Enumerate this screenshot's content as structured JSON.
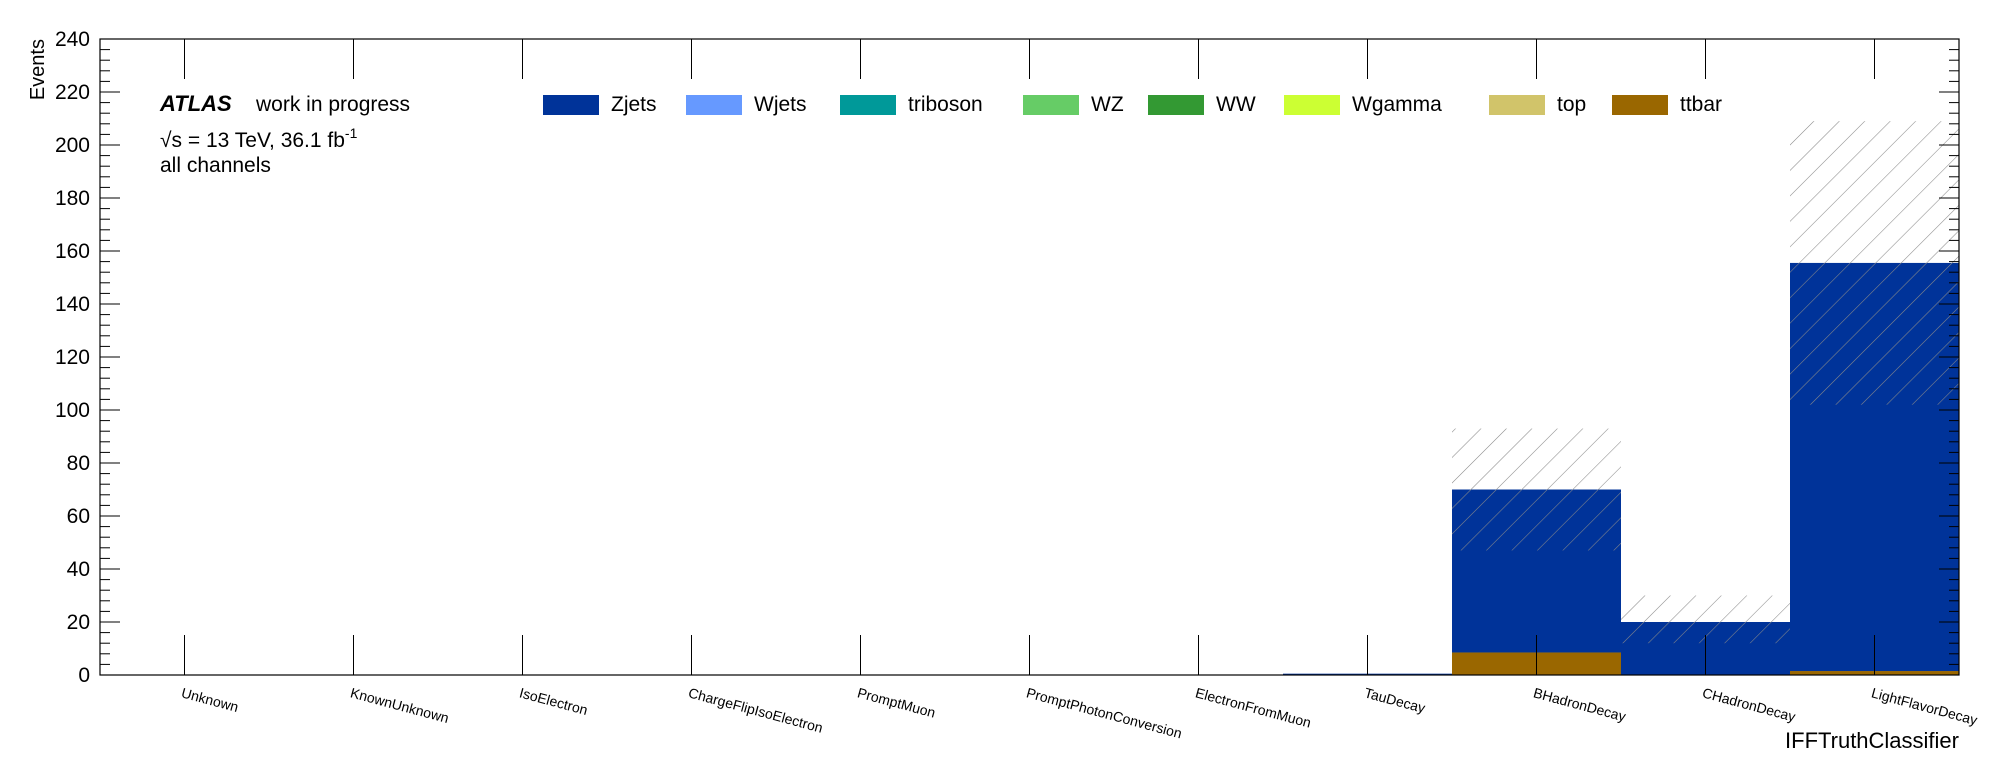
{
  "chart_data": {
    "type": "bar",
    "stacked": true,
    "xlabel": "IFFTruthClassifier",
    "ylabel": "Events",
    "ylim": [
      0,
      240
    ],
    "yticks": [
      0,
      20,
      40,
      60,
      80,
      100,
      120,
      140,
      160,
      180,
      200,
      220,
      240
    ],
    "categories": [
      "Unknown",
      "KnownUnknown",
      "IsoElectron",
      "ChargeFlipIsoElectron",
      "PromptMuon",
      "PromptPhotonConversion",
      "ElectronFromMuon",
      "TauDecay",
      "BHadronDecay",
      "CHadronDecay",
      "LightFlavorDecay"
    ],
    "series": [
      {
        "name": "ttbar",
        "color": "#9a6700",
        "values": [
          0,
          0,
          0,
          0,
          0,
          0,
          0,
          0,
          8.5,
          0,
          1.5
        ]
      },
      {
        "name": "top",
        "color": "#d1c46a",
        "values": [
          0,
          0,
          0,
          0,
          0,
          0,
          0,
          0,
          0,
          0,
          0
        ]
      },
      {
        "name": "Wgamma",
        "color": "#ccff33",
        "values": [
          0,
          0,
          0,
          0,
          0,
          0,
          0,
          0,
          0,
          0,
          0
        ]
      },
      {
        "name": "WW",
        "color": "#339933",
        "values": [
          0,
          0,
          0,
          0,
          0,
          0,
          0,
          0,
          0,
          0,
          0
        ]
      },
      {
        "name": "WZ",
        "color": "#66cc66",
        "values": [
          0,
          0,
          0,
          0,
          0,
          0,
          0,
          0,
          0,
          0,
          0
        ]
      },
      {
        "name": "triboson",
        "color": "#009999",
        "values": [
          0,
          0,
          0,
          0,
          0,
          0,
          0,
          0,
          0,
          0,
          0
        ]
      },
      {
        "name": "Wjets",
        "color": "#6699ff",
        "values": [
          0,
          0,
          0,
          0,
          0,
          0,
          0,
          0,
          0,
          0,
          0
        ]
      },
      {
        "name": "Zjets",
        "color": "#003399",
        "values": [
          0,
          0,
          0,
          0,
          0,
          0,
          0,
          0.5,
          61.5,
          20,
          154
        ]
      }
    ],
    "uncertainty_band": {
      "style": "hatched",
      "low": [
        0,
        0,
        0,
        0,
        0,
        0,
        0,
        0,
        47,
        12,
        102
      ],
      "high": [
        0,
        0,
        0,
        0,
        0,
        0,
        0,
        0,
        93,
        30,
        209
      ]
    },
    "legend_order": [
      "Zjets",
      "Wjets",
      "triboson",
      "WZ",
      "WW",
      "Wgamma",
      "top",
      "ttbar"
    ],
    "legend_placement": "top",
    "grid": false
  },
  "labels": {
    "atlas": "ATLAS",
    "status": "work in progress",
    "energy_prefix": "√s = 13 TeV, 36.1 fb",
    "energy_sup": "-1",
    "channels": "all channels"
  }
}
